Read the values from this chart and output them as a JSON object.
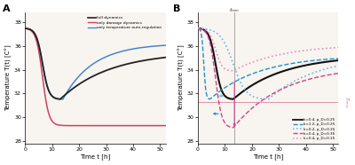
{
  "T0": 37.5,
  "xlim": [
    0,
    52
  ],
  "ylim_A": [
    27.8,
    38.8
  ],
  "ylim_B": [
    27.8,
    38.8
  ],
  "yticks": [
    28,
    30,
    32,
    34,
    36,
    38
  ],
  "xticks": [
    0,
    10,
    20,
    30,
    40,
    50
  ],
  "xlabel": "Time t [h]",
  "ylabel_A": "Temperature T(t) [C°]",
  "ylabel_B": "Temperature T(t) [C°]",
  "panel_A_label": "A",
  "panel_B_label": "B",
  "legend_A": [
    "full dynamics",
    "only damage dynamics",
    "only temperature auto-regulation"
  ],
  "legend_B": [
    "k=0.4, p_D=0.25",
    "k=1.2, p_D=0.25",
    "k=0.2, p_D=0.25",
    "k=0.4, p_D=0.35",
    "k=0.4, p_D=0.15"
  ],
  "colors_A": [
    "#222222",
    "#d04060",
    "#4488cc"
  ],
  "colors_B": [
    "#111111",
    "#2090cc",
    "#66bbd8",
    "#cc4488",
    "#e090b8"
  ],
  "t_min_line": 13.5,
  "T_min_line": 31.3,
  "bg_color": "#ffffff",
  "ax_bg": "#f8f4f0"
}
